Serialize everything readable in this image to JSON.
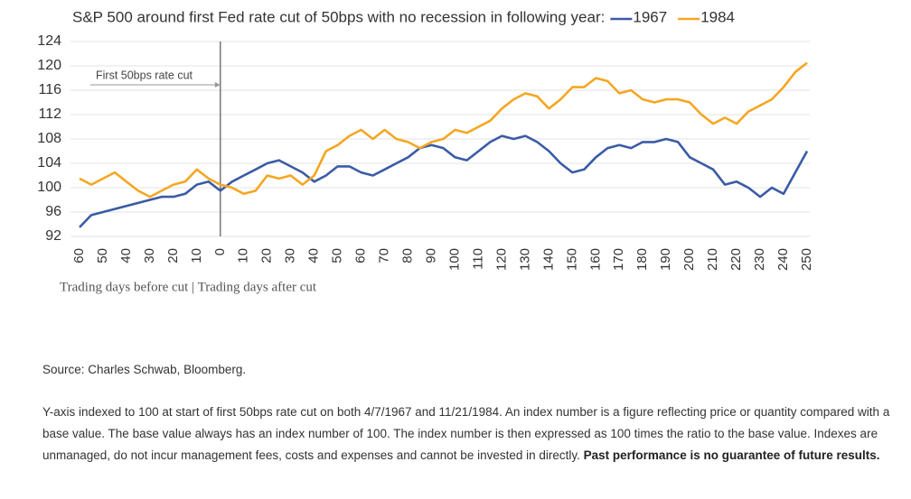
{
  "chart_data": {
    "type": "line",
    "title": "S&P 500 around first Fed rate cut of 50bps with no recession in following year:",
    "x_label": "Trading days before cut | Trading days after cut",
    "annotation": {
      "text": "First 50bps rate cut",
      "x": 0
    },
    "x": [
      -60,
      -55,
      -50,
      -45,
      -40,
      -35,
      -30,
      -25,
      -20,
      -15,
      -10,
      -5,
      0,
      5,
      10,
      15,
      20,
      25,
      30,
      35,
      40,
      45,
      50,
      55,
      60,
      65,
      70,
      75,
      80,
      85,
      90,
      95,
      100,
      105,
      110,
      115,
      120,
      125,
      130,
      135,
      140,
      145,
      150,
      155,
      160,
      165,
      170,
      175,
      180,
      185,
      190,
      195,
      200,
      205,
      210,
      215,
      220,
      225,
      230,
      235,
      240,
      245,
      250
    ],
    "series": [
      {
        "name": "1967",
        "color": "#3b5ba5",
        "values": [
          93.5,
          95.5,
          96,
          96.5,
          97,
          97.5,
          98,
          98.5,
          98.5,
          99,
          100.5,
          101,
          99.5,
          101,
          102,
          103,
          104,
          104.5,
          103.5,
          102.5,
          101,
          102,
          103.5,
          103.5,
          102.5,
          102,
          103,
          104,
          105,
          106.5,
          107,
          106.5,
          105,
          104.5,
          106,
          107.5,
          108.5,
          108,
          108.5,
          107.5,
          106,
          104,
          102.5,
          103,
          105,
          106.5,
          107,
          106.5,
          107.5,
          107.5,
          108,
          107.5,
          105,
          104,
          103,
          100.5,
          101,
          100,
          98.5,
          100,
          99,
          102.5,
          106
        ]
      },
      {
        "name": "1984",
        "color": "#f5a623",
        "values": [
          101.5,
          100.5,
          101.5,
          102.5,
          101,
          99.5,
          98.5,
          99.5,
          100.5,
          101,
          103,
          101.5,
          100.5,
          100,
          99,
          99.5,
          102,
          101.5,
          102,
          100.5,
          102,
          106,
          107,
          108.5,
          109.5,
          108,
          109.5,
          108,
          107.5,
          106.5,
          107.5,
          108,
          109.5,
          109,
          110,
          111,
          113,
          114.5,
          115.5,
          115,
          113,
          114.5,
          116.5,
          116.5,
          118,
          117.5,
          115.5,
          116,
          114.5,
          114,
          114.5,
          114.5,
          114,
          112,
          110.5,
          111.5,
          110.5,
          112.5,
          113.5,
          114.5,
          116.5,
          119,
          120.5
        ]
      }
    ],
    "xlim": [
      -60,
      250
    ],
    "xticks": [
      {
        "value": -60,
        "label": "60"
      },
      {
        "value": -50,
        "label": "50"
      },
      {
        "value": -40,
        "label": "40"
      },
      {
        "value": -30,
        "label": "30"
      },
      {
        "value": -20,
        "label": "20"
      },
      {
        "value": -10,
        "label": "10"
      },
      0,
      10,
      20,
      30,
      40,
      50,
      60,
      70,
      80,
      90,
      100,
      110,
      120,
      130,
      140,
      150,
      160,
      170,
      180,
      190,
      200,
      210,
      220,
      230,
      240,
      250
    ],
    "ylim": [
      92,
      124
    ],
    "yticks": [
      92,
      96,
      100,
      104,
      108,
      112,
      116,
      120,
      124
    ],
    "grid": true
  },
  "source": "Source: Charles Schwab, Bloomberg.",
  "note": "Y-axis indexed to 100 at start of first 50bps rate cut on both 4/7/1967 and 11/21/1984. An index number is a figure reflecting price or quantity compared with a base value. The base value always has an index number of 100. The index number is then expressed as 100 times the ratio to the base value. Indexes are unmanaged, do not incur management fees, costs and expenses and cannot be invested in directly.",
  "note_bold": "Past performance is no guarantee of future results."
}
